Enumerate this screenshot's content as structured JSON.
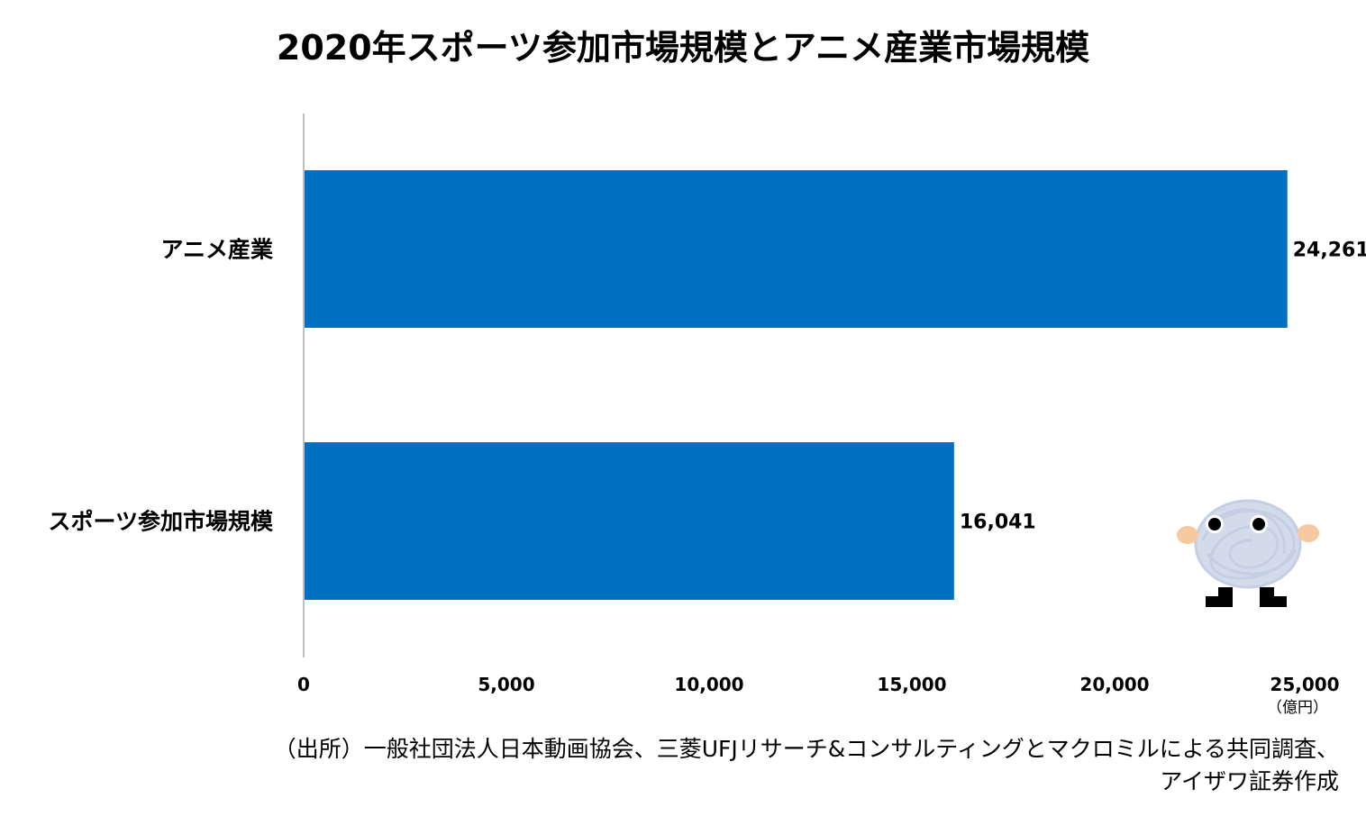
{
  "chart_data": {
    "type": "bar",
    "orientation": "horizontal",
    "title": "2020年スポーツ参加市場規模とアニメ産業市場規模",
    "categories": [
      "アニメ産業",
      "スポーツ参加市場規模"
    ],
    "values": [
      24261,
      16041
    ],
    "data_labels": [
      "24,261",
      "16,041"
    ],
    "xlim": [
      0,
      25000
    ],
    "x_ticks": [
      0,
      5000,
      10000,
      15000,
      20000,
      25000
    ],
    "x_tick_labels": [
      "0",
      "5,000",
      "10,000",
      "15,000",
      "20,000",
      "25,000"
    ],
    "unit_label": "（億円）",
    "grid": false,
    "bar_color": "#0070C0"
  },
  "source_note_lines": [
    "（出所）一般社団法人日本動画協会、三菱UFJリサーチ&コンサルティングとマクロミルによる共同調査、",
    "アイザワ証券作成"
  ]
}
